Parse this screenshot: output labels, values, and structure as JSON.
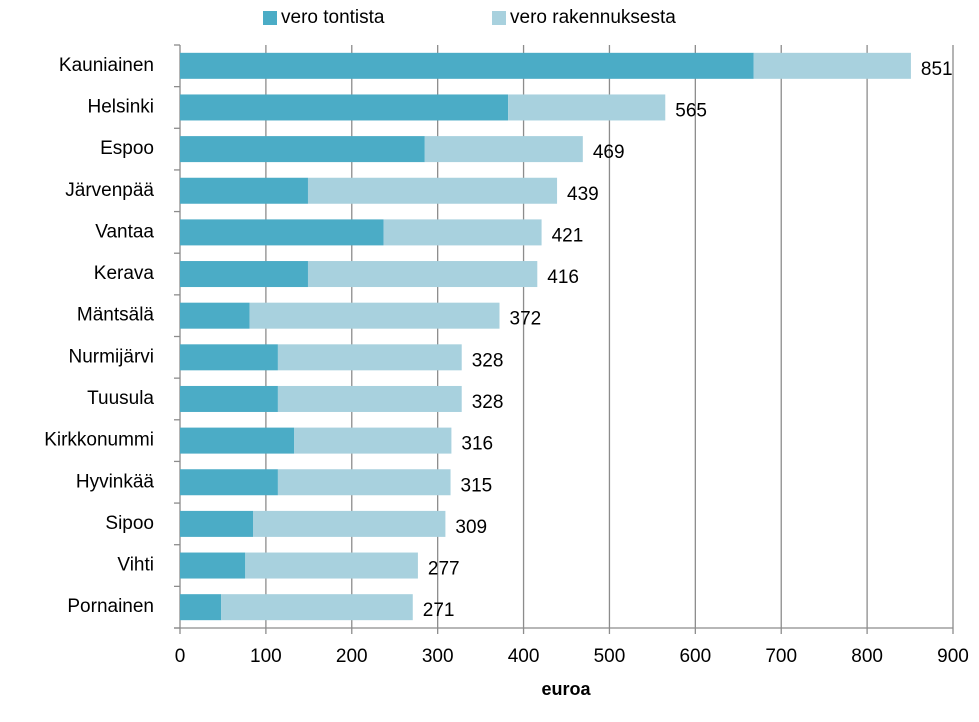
{
  "chart_data": {
    "type": "stacked_barh",
    "categories": [
      "Kauniainen",
      "Helsinki",
      "Espoo",
      "Järvenpää",
      "Vantaa",
      "Kerava",
      "Mäntsälä",
      "Nurmijärvi",
      "Tuusula",
      "Kirkkonummi",
      "Hyvinkää",
      "Sipoo",
      "Vihti",
      "Pornainen"
    ],
    "series": [
      {
        "name": "vero tontista",
        "color": "#4bacc6",
        "values": [
          668,
          382,
          285,
          149,
          237,
          149,
          81,
          114,
          114,
          133,
          114,
          85,
          76,
          48
        ]
      },
      {
        "name": "vero rakennuksesta",
        "color": "#a8d1de",
        "values": [
          183,
          183,
          184,
          290,
          184,
          267,
          291,
          214,
          214,
          183,
          201,
          224,
          201,
          223
        ]
      }
    ],
    "totals": [
      851,
      565,
      469,
      439,
      421,
      416,
      372,
      328,
      328,
      316,
      315,
      309,
      277,
      271
    ],
    "xlabel": "euroa",
    "xlim": [
      0,
      900
    ],
    "xticks": [
      0,
      100,
      200,
      300,
      400,
      500,
      600,
      700,
      800,
      900
    ],
    "grid": true,
    "legend": "top"
  }
}
